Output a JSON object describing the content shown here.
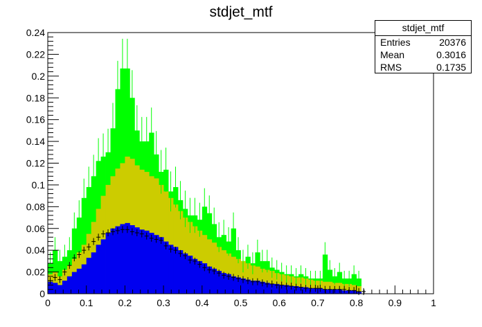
{
  "chart_data": {
    "type": "bar",
    "title": "stdjet_mtf",
    "xlabel": "",
    "ylabel": "",
    "xlim": [
      0,
      1
    ],
    "ylim": [
      0,
      0.24
    ],
    "bins": 80,
    "x_ticks": [
      "0",
      "0.1",
      "0.2",
      "0.3",
      "0.4",
      "0.5",
      "0.6",
      "0.7",
      "0.8",
      "0.9",
      "1"
    ],
    "y_ticks": [
      "0",
      "0.02",
      "0.04",
      "0.06",
      "0.08",
      "0.1",
      "0.12",
      "0.14",
      "0.16",
      "0.18",
      "0.2",
      "0.22",
      "0.24"
    ],
    "series": [
      {
        "name": "blue",
        "color": "#0000f0",
        "values": [
          0.011,
          0.01,
          0.008,
          0.012,
          0.016,
          0.02,
          0.023,
          0.027,
          0.033,
          0.038,
          0.045,
          0.05,
          0.056,
          0.06,
          0.062,
          0.064,
          0.065,
          0.063,
          0.061,
          0.059,
          0.058,
          0.056,
          0.054,
          0.052,
          0.048,
          0.045,
          0.043,
          0.04,
          0.037,
          0.035,
          0.032,
          0.03,
          0.028,
          0.025,
          0.023,
          0.021,
          0.019,
          0.018,
          0.016,
          0.015,
          0.014,
          0.013,
          0.012,
          0.012,
          0.011,
          0.01,
          0.009,
          0.009,
          0.008,
          0.008,
          0.007,
          0.007,
          0.006,
          0.006,
          0.005,
          0.005,
          0.005,
          0.004,
          0.004,
          0.004,
          0.004,
          0.003,
          0.003,
          0.003,
          0.002,
          0,
          0,
          0,
          0,
          0,
          0,
          0,
          0,
          0,
          0,
          0,
          0,
          0,
          0,
          0
        ]
      },
      {
        "name": "yellow",
        "color": "#cccc00",
        "values": [
          0.018,
          0.02,
          0.016,
          0.022,
          0.026,
          0.032,
          0.038,
          0.045,
          0.055,
          0.066,
          0.078,
          0.09,
          0.1,
          0.108,
          0.115,
          0.12,
          0.126,
          0.124,
          0.118,
          0.114,
          0.112,
          0.108,
          0.106,
          0.1,
          0.094,
          0.088,
          0.082,
          0.076,
          0.07,
          0.066,
          0.062,
          0.058,
          0.054,
          0.05,
          0.047,
          0.043,
          0.04,
          0.037,
          0.034,
          0.032,
          0.03,
          0.028,
          0.026,
          0.025,
          0.023,
          0.022,
          0.021,
          0.019,
          0.018,
          0.017,
          0.016,
          0.015,
          0.015,
          0.014,
          0.013,
          0.012,
          0.012,
          0.011,
          0.011,
          0.01,
          0.01,
          0.009,
          0.009,
          0.008,
          0.007,
          0,
          0,
          0,
          0,
          0,
          0,
          0,
          0,
          0,
          0,
          0,
          0,
          0,
          0,
          0
        ]
      },
      {
        "name": "green",
        "color": "#00ff00",
        "values": [
          0.028,
          0.04,
          0.03,
          0.034,
          0.04,
          0.06,
          0.07,
          0.088,
          0.098,
          0.108,
          0.122,
          0.126,
          0.13,
          0.152,
          0.188,
          0.207,
          0.207,
          0.18,
          0.15,
          0.14,
          0.14,
          0.148,
          0.128,
          0.112,
          0.114,
          0.094,
          0.098,
          0.086,
          0.078,
          0.072,
          0.072,
          0.068,
          0.08,
          0.074,
          0.064,
          0.052,
          0.054,
          0.048,
          0.06,
          0.04,
          0.03,
          0.034,
          0.028,
          0.038,
          0.03,
          0.03,
          0.024,
          0.022,
          0.02,
          0.018,
          0.018,
          0.016,
          0.018,
          0.016,
          0.014,
          0.014,
          0.014,
          0.036,
          0.022,
          0.016,
          0.02,
          0.014,
          0.014,
          0.018,
          0.014,
          0,
          0,
          0,
          0,
          0,
          0,
          0,
          0,
          0,
          0,
          0,
          0,
          0,
          0,
          0
        ]
      },
      {
        "name": "data",
        "color": "#000000",
        "values": [
          0.012,
          0.015,
          0.013,
          0.02,
          0.026,
          0.033,
          0.036,
          0.04,
          0.043,
          0.048,
          0.052,
          0.055,
          0.056,
          0.057,
          0.058,
          0.059,
          0.059,
          0.057,
          0.056,
          0.055,
          0.053,
          0.051,
          0.05,
          0.049,
          0.044,
          0.041,
          0.04,
          0.037,
          0.035,
          0.031,
          0.03,
          0.027,
          0.024,
          0.022,
          0.021,
          0.019,
          0.017,
          0.016,
          0.015,
          0.014,
          0.013,
          0.012,
          0.011,
          0.011,
          0.01,
          0.009,
          0.009,
          0.008,
          0.008,
          0.007,
          0.007,
          0.006,
          0.006,
          0.005,
          0.005,
          0.005,
          0.005,
          0.004,
          0.004,
          0.004,
          0.004,
          0.004,
          0.003,
          0.003,
          0.002,
          0.002,
          0,
          0,
          0,
          0,
          0,
          0,
          0,
          0,
          0,
          0,
          0,
          0,
          0,
          0
        ]
      }
    ],
    "stats": {
      "header": "stdjet_mtf",
      "rows": [
        {
          "label": "Entries",
          "value": "20376"
        },
        {
          "label": "Mean",
          "value": "0.3016"
        },
        {
          "label": "RMS",
          "value": "0.1735"
        }
      ]
    }
  }
}
